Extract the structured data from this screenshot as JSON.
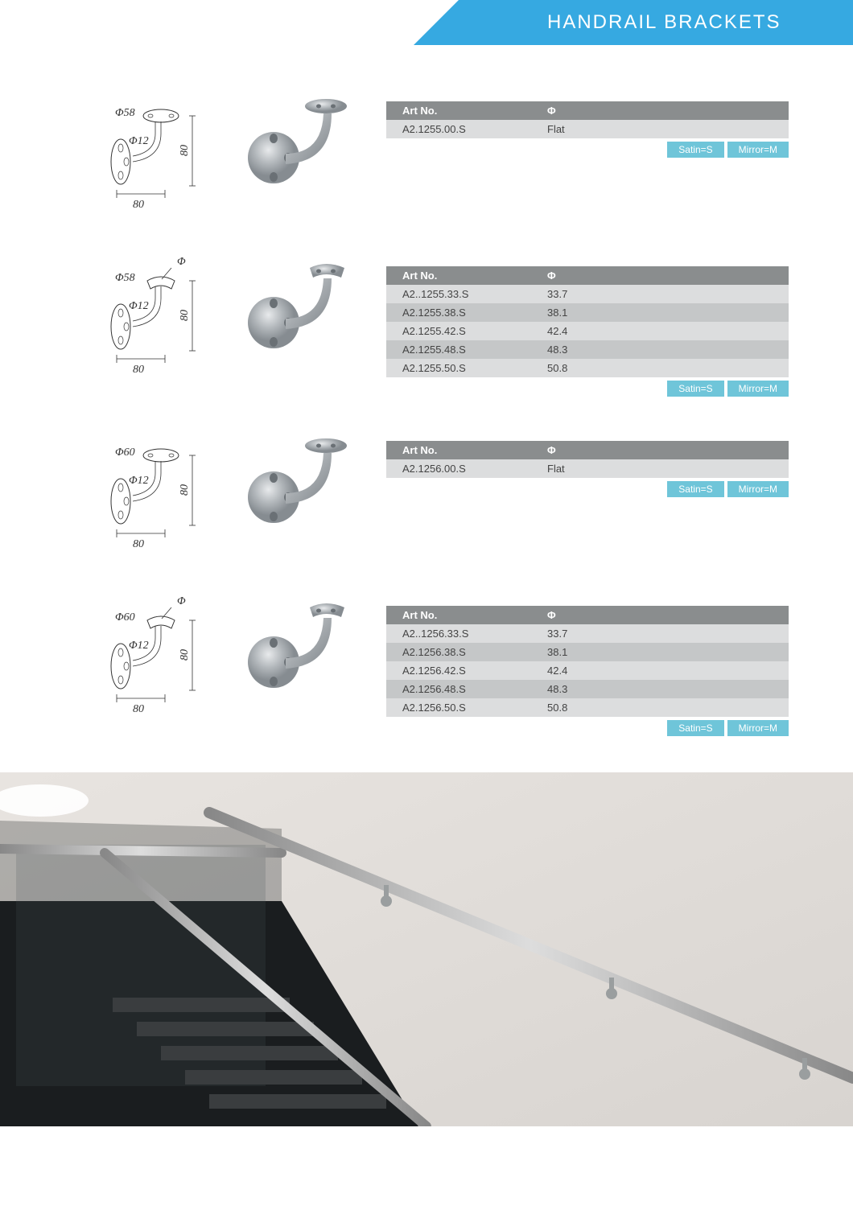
{
  "header": {
    "title": "HANDRAIL BRACKETS"
  },
  "colors": {
    "accent": "#36a9e1",
    "pill": "#6fc5d9",
    "tableHeader": "#8a8d8e",
    "rowLight": "#dcddde",
    "rowDark": "#c5c7c8",
    "steel1": "#b8bcc0",
    "steel2": "#8e9499"
  },
  "finishKey": {
    "satin": "Satin=S",
    "mirror": "Mirror=M"
  },
  "tableHeaders": {
    "artNo": "Art No.",
    "phi": "Φ"
  },
  "products": [
    {
      "diagram": {
        "topDia": "Φ58",
        "holeDia": "Φ12",
        "height": "80",
        "depth": "80",
        "curvedHead": false
      },
      "rows": [
        {
          "artNo": "A2.1255.00.S",
          "phi": "Flat"
        }
      ]
    },
    {
      "diagram": {
        "topDia": "Φ58",
        "holeDia": "Φ12",
        "height": "80",
        "depth": "80",
        "curvedHead": true,
        "phiTop": "Φ"
      },
      "rows": [
        {
          "artNo": "A2..1255.33.S",
          "phi": "33.7"
        },
        {
          "artNo": "A2.1255.38.S",
          "phi": "38.1"
        },
        {
          "artNo": "A2.1255.42.S",
          "phi": "42.4"
        },
        {
          "artNo": "A2.1255.48.S",
          "phi": "48.3"
        },
        {
          "artNo": "A2.1255.50.S",
          "phi": "50.8"
        }
      ]
    },
    {
      "diagram": {
        "topDia": "Φ60",
        "holeDia": "Φ12",
        "height": "80",
        "depth": "80",
        "curvedHead": false
      },
      "rows": [
        {
          "artNo": "A2.1256.00.S",
          "phi": "Flat"
        }
      ]
    },
    {
      "diagram": {
        "topDia": "Φ60",
        "holeDia": "Φ12",
        "height": "80",
        "depth": "80",
        "curvedHead": true,
        "phiTop": "Φ"
      },
      "rows": [
        {
          "artNo": "A2..1256.33.S",
          "phi": "33.7"
        },
        {
          "artNo": "A2.1256.38.S",
          "phi": "38.1"
        },
        {
          "artNo": "A2.1256.42.S",
          "phi": "42.4"
        },
        {
          "artNo": "A2.1256.48.S",
          "phi": "48.3"
        },
        {
          "artNo": "A2.1256.50.S",
          "phi": "50.8"
        }
      ]
    }
  ]
}
